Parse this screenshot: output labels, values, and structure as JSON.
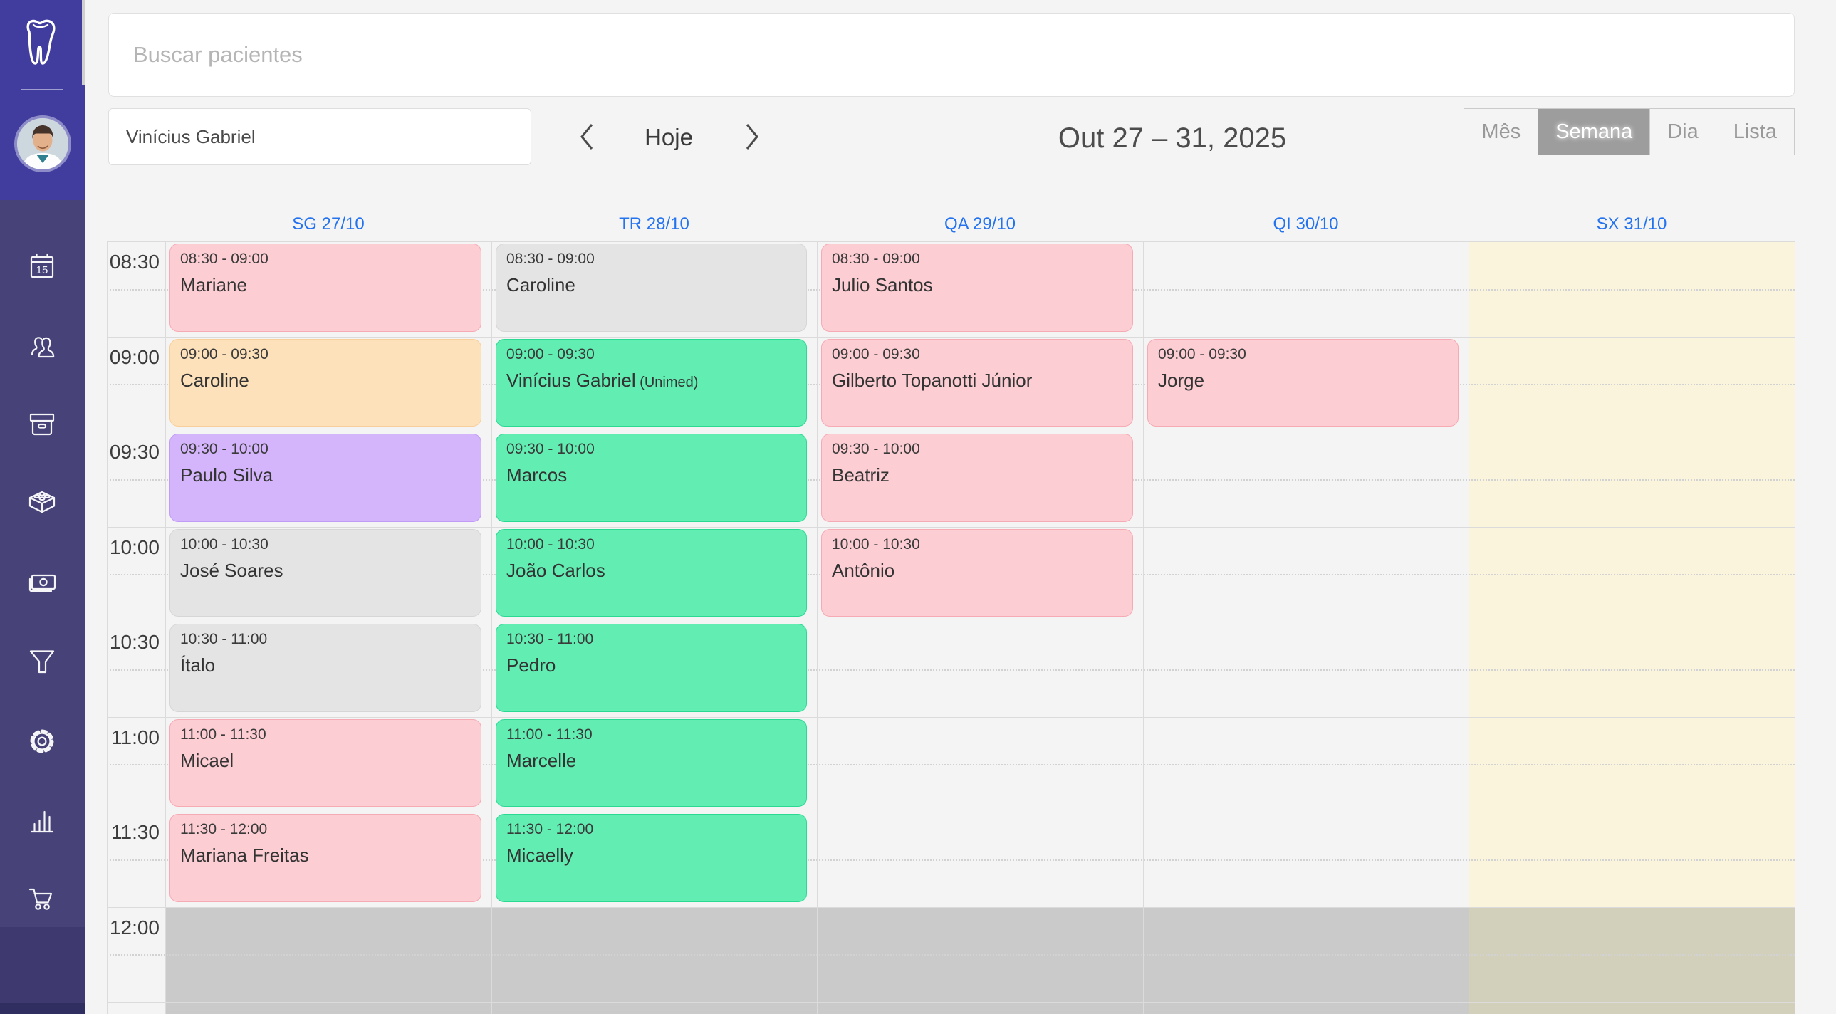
{
  "theme": {
    "sidebar_top_color": "#403d9e",
    "sidebar_nav_color": "#474379",
    "day_header_blue": "#2372f0",
    "friday_column_bg": "#fbf4dc",
    "off_hours_bg": "#cacaca",
    "off_hours_friday_bg": "#d2cfba",
    "event_colors": {
      "pink": {
        "bg": "#fccdd2",
        "border": "#f6aab3"
      },
      "green": {
        "bg": "#62edb3",
        "border": "#2ada93"
      },
      "gray": {
        "bg": "#e4e4e4",
        "border": "#d6d6d6"
      },
      "peach": {
        "bg": "#fde1bb",
        "border": "#f9cf99"
      },
      "purple": {
        "bg": "#d4b5fb",
        "border": "#c19bf5"
      }
    }
  },
  "sidebar": {
    "logo_icon": "tooth-icon",
    "icons": [
      "calendar-icon",
      "people-icon",
      "archive-box-icon",
      "brick-icon",
      "banknote-icon",
      "funnel-icon",
      "gear-icon",
      "bar-chart-icon",
      "shopping-cart-icon"
    ]
  },
  "header": {
    "search_placeholder": "Buscar pacientes",
    "professional": "Vinícius Gabriel",
    "today_label": "Hoje",
    "date_range": "Out 27 – 31, 2025",
    "views": [
      {
        "label": "Mês",
        "active": false
      },
      {
        "label": "Semana",
        "active": true
      },
      {
        "label": "Dia",
        "active": false
      },
      {
        "label": "Lista",
        "active": false
      }
    ]
  },
  "calendar": {
    "day_headers": [
      "SG 27/10",
      "TR 28/10",
      "QA 29/10",
      "QI 30/10",
      "SX 31/10"
    ],
    "time_labels": [
      "08:30",
      "09:00",
      "09:30",
      "10:00",
      "10:30",
      "11:00",
      "11:30",
      "12:00"
    ],
    "events": [
      {
        "day": 0,
        "slot": 0,
        "time": "08:30 - 09:00",
        "name": "Mariane",
        "variant": "pink"
      },
      {
        "day": 0,
        "slot": 1,
        "time": "09:00 - 09:30",
        "name": "Caroline",
        "variant": "peach"
      },
      {
        "day": 0,
        "slot": 2,
        "time": "09:30 - 10:00",
        "name": "Paulo Silva",
        "variant": "purple"
      },
      {
        "day": 0,
        "slot": 3,
        "time": "10:00 - 10:30",
        "name": "José Soares",
        "variant": "gray"
      },
      {
        "day": 0,
        "slot": 4,
        "time": "10:30 - 11:00",
        "name": "Ítalo",
        "variant": "gray"
      },
      {
        "day": 0,
        "slot": 5,
        "time": "11:00 - 11:30",
        "name": "Micael",
        "variant": "pink"
      },
      {
        "day": 0,
        "slot": 6,
        "time": "11:30 - 12:00",
        "name": "Mariana Freitas",
        "variant": "pink"
      },
      {
        "day": 1,
        "slot": 0,
        "time": "08:30 - 09:00",
        "name": "Caroline",
        "variant": "gray"
      },
      {
        "day": 1,
        "slot": 1,
        "time": "09:00 - 09:30",
        "name": "Vinícius Gabriel",
        "suffix": "(Unimed)",
        "variant": "green"
      },
      {
        "day": 1,
        "slot": 2,
        "time": "09:30 - 10:00",
        "name": "Marcos",
        "variant": "green"
      },
      {
        "day": 1,
        "slot": 3,
        "time": "10:00 - 10:30",
        "name": "João Carlos",
        "variant": "green"
      },
      {
        "day": 1,
        "slot": 4,
        "time": "10:30 - 11:00",
        "name": "Pedro",
        "variant": "green"
      },
      {
        "day": 1,
        "slot": 5,
        "time": "11:00 - 11:30",
        "name": "Marcelle",
        "variant": "green"
      },
      {
        "day": 1,
        "slot": 6,
        "time": "11:30 - 12:00",
        "name": "Micaelly",
        "variant": "green"
      },
      {
        "day": 2,
        "slot": 0,
        "time": "08:30 - 09:00",
        "name": "Julio Santos",
        "variant": "pink"
      },
      {
        "day": 2,
        "slot": 1,
        "time": "09:00 - 09:30",
        "name": "Gilberto Topanotti Júnior",
        "variant": "pink"
      },
      {
        "day": 2,
        "slot": 2,
        "time": "09:30 - 10:00",
        "name": "Beatriz",
        "variant": "pink"
      },
      {
        "day": 2,
        "slot": 3,
        "time": "10:00 - 10:30",
        "name": "Antônio",
        "variant": "pink"
      },
      {
        "day": 3,
        "slot": 1,
        "time": "09:00 - 09:30",
        "name": "Jorge",
        "variant": "pink"
      }
    ]
  }
}
